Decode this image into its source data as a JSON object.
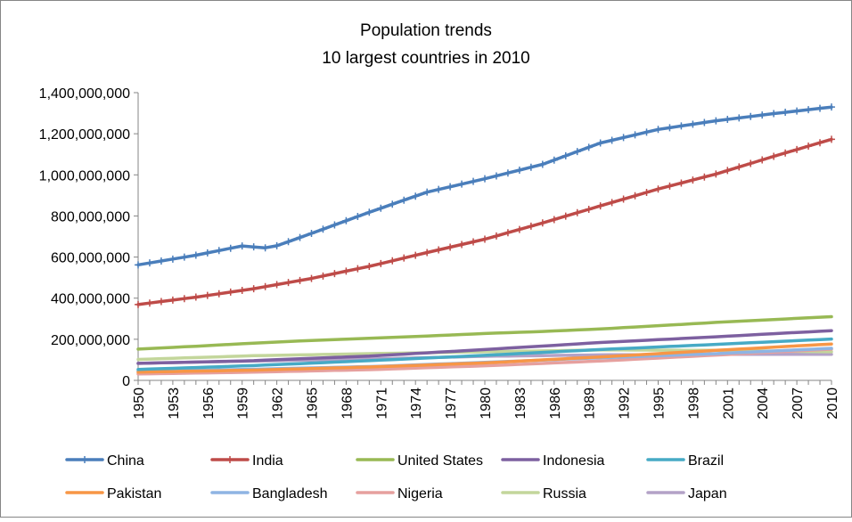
{
  "chart_data": {
    "type": "line",
    "title": "Population trends",
    "subtitle": "10 largest countries in 2010",
    "xlabel": "",
    "ylabel": "",
    "ylim": [
      0,
      1400000000
    ],
    "y_ticks": [
      0,
      200000000,
      400000000,
      600000000,
      800000000,
      1000000000,
      1200000000,
      1400000000
    ],
    "y_tick_labels": [
      "0",
      "200,000,000",
      "400,000,000",
      "600,000,000",
      "800,000,000",
      "1,000,000,000",
      "1,200,000,000",
      "1,400,000,000"
    ],
    "x_start": 1950,
    "x_end": 2010,
    "x_tick_labels": [
      "1950",
      "1953",
      "1956",
      "1959",
      "1962",
      "1965",
      "1968",
      "1971",
      "1974",
      "1977",
      "1980",
      "1983",
      "1986",
      "1989",
      "1992",
      "1995",
      "1998",
      "2001",
      "2004",
      "2007",
      "2010"
    ],
    "legend_position": "bottom",
    "grid": false,
    "series": [
      {
        "name": "China",
        "color": "#4a7ebb",
        "markers": true,
        "knots": [
          [
            1950,
            562000000
          ],
          [
            1955,
            609000000
          ],
          [
            1959,
            654000000
          ],
          [
            1961,
            645000000
          ],
          [
            1962,
            655000000
          ],
          [
            1965,
            715000000
          ],
          [
            1970,
            818000000
          ],
          [
            1975,
            916000000
          ],
          [
            1980,
            981000000
          ],
          [
            1985,
            1051000000
          ],
          [
            1990,
            1155000000
          ],
          [
            1995,
            1221000000
          ],
          [
            2000,
            1263000000
          ],
          [
            2005,
            1298000000
          ],
          [
            2010,
            1330000000
          ]
        ]
      },
      {
        "name": "India",
        "color": "#be4b48",
        "markers": true,
        "knots": [
          [
            1950,
            369000000
          ],
          [
            1955,
            405000000
          ],
          [
            1960,
            446000000
          ],
          [
            1965,
            496000000
          ],
          [
            1970,
            555000000
          ],
          [
            1975,
            622000000
          ],
          [
            1980,
            687000000
          ],
          [
            1985,
            766000000
          ],
          [
            1990,
            849000000
          ],
          [
            1995,
            931000000
          ],
          [
            2000,
            1004000000
          ],
          [
            2005,
            1090000000
          ],
          [
            2010,
            1173000000
          ]
        ]
      },
      {
        "name": "United States",
        "color": "#98b954",
        "markers": false,
        "knots": [
          [
            1950,
            152000000
          ],
          [
            1955,
            166000000
          ],
          [
            1960,
            181000000
          ],
          [
            1965,
            194000000
          ],
          [
            1970,
            205000000
          ],
          [
            1975,
            216000000
          ],
          [
            1980,
            228000000
          ],
          [
            1985,
            238000000
          ],
          [
            1990,
            250000000
          ],
          [
            1995,
            266000000
          ],
          [
            2000,
            282000000
          ],
          [
            2005,
            296000000
          ],
          [
            2010,
            310000000
          ]
        ]
      },
      {
        "name": "Indonesia",
        "color": "#7d60a0",
        "markers": false,
        "knots": [
          [
            1950,
            83000000
          ],
          [
            1960,
            96000000
          ],
          [
            1970,
            118000000
          ],
          [
            1980,
            150000000
          ],
          [
            1990,
            184000000
          ],
          [
            2000,
            212000000
          ],
          [
            2010,
            242000000
          ]
        ]
      },
      {
        "name": "Brazil",
        "color": "#46aac5",
        "markers": false,
        "knots": [
          [
            1950,
            53000000
          ],
          [
            1960,
            72000000
          ],
          [
            1970,
            96000000
          ],
          [
            1980,
            122000000
          ],
          [
            1990,
            150000000
          ],
          [
            2000,
            175000000
          ],
          [
            2010,
            201000000
          ]
        ]
      },
      {
        "name": "Pakistan",
        "color": "#f79646",
        "markers": false,
        "knots": [
          [
            1950,
            40000000
          ],
          [
            1960,
            50000000
          ],
          [
            1970,
            65000000
          ],
          [
            1980,
            85000000
          ],
          [
            1990,
            114000000
          ],
          [
            2000,
            146000000
          ],
          [
            2010,
            177000000
          ]
        ]
      },
      {
        "name": "Bangladesh",
        "color": "#8eb4e3",
        "markers": false,
        "knots": [
          [
            1950,
            44000000
          ],
          [
            1960,
            54000000
          ],
          [
            1970,
            67000000
          ],
          [
            1980,
            88000000
          ],
          [
            1990,
            110000000
          ],
          [
            2000,
            130000000
          ],
          [
            2010,
            156000000
          ]
        ]
      },
      {
        "name": "Nigeria",
        "color": "#e6a09e",
        "markers": false,
        "knots": [
          [
            1950,
            31000000
          ],
          [
            1960,
            40000000
          ],
          [
            1970,
            52000000
          ],
          [
            1980,
            71000000
          ],
          [
            1990,
            94000000
          ],
          [
            2000,
            123000000
          ],
          [
            2010,
            152000000
          ]
        ]
      },
      {
        "name": "Russia",
        "color": "#c3d69b",
        "markers": false,
        "knots": [
          [
            1950,
            102000000
          ],
          [
            1960,
            120000000
          ],
          [
            1970,
            130000000
          ],
          [
            1980,
            139000000
          ],
          [
            1990,
            148000000
          ],
          [
            2000,
            146000000
          ],
          [
            2010,
            139000000
          ]
        ]
      },
      {
        "name": "Japan",
        "color": "#b3a2c7",
        "markers": false,
        "knots": [
          [
            1950,
            83000000
          ],
          [
            1960,
            94000000
          ],
          [
            1970,
            104000000
          ],
          [
            1980,
            117000000
          ],
          [
            1990,
            124000000
          ],
          [
            2000,
            127000000
          ],
          [
            2010,
            127000000
          ]
        ]
      }
    ]
  }
}
